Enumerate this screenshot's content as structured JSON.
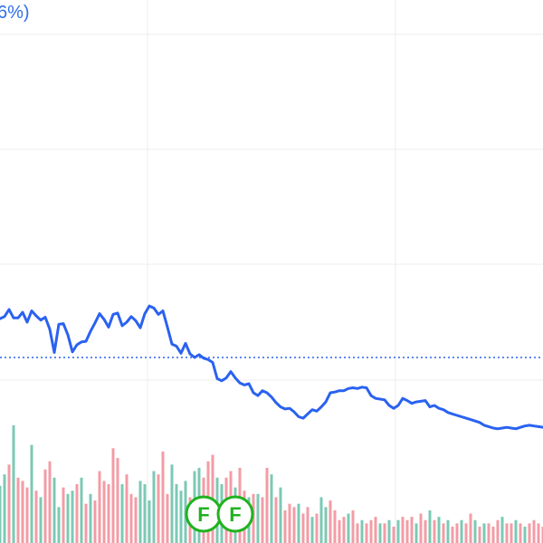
{
  "header": {
    "change_text": "6%)"
  },
  "colors": {
    "price_line": "#2a62f0",
    "baseline": "#2a62f0",
    "volume_up": "#7cc9b4",
    "volume_down": "#f39ca6",
    "marker": "#20b21f",
    "grid": "#ececec"
  },
  "chart_data": {
    "type": "line",
    "price": {
      "x": [
        0,
        1,
        2,
        3,
        4,
        5,
        6,
        7,
        8,
        9,
        10,
        11,
        12,
        13,
        14,
        15,
        16,
        17,
        18,
        19,
        20,
        21,
        22,
        23,
        24,
        25,
        26,
        27,
        28,
        29,
        30,
        31,
        32,
        33,
        34,
        35,
        36,
        37,
        38,
        39,
        40,
        41,
        42,
        43,
        44,
        45,
        46,
        47,
        48,
        49,
        50,
        51,
        52,
        53,
        54,
        55,
        56,
        57,
        58,
        59,
        60,
        61,
        62,
        63,
        64,
        65,
        66,
        67,
        68,
        69,
        70,
        71,
        72,
        73,
        74,
        75,
        76,
        77,
        78,
        79,
        80,
        81,
        82,
        83,
        84,
        85,
        86,
        87,
        88,
        89,
        90,
        91,
        92,
        93,
        94,
        95,
        96,
        97,
        98,
        99,
        100,
        101,
        102,
        103,
        104,
        105,
        106,
        107,
        108,
        109,
        110,
        111,
        112,
        113,
        114,
        115,
        116,
        117,
        118,
        119,
        120
      ],
      "values": [
        55,
        58,
        68,
        56,
        56,
        64,
        50,
        66,
        59,
        53,
        57,
        40,
        7,
        47,
        48,
        32,
        8,
        18,
        22,
        23,
        37,
        49,
        62,
        54,
        43,
        61,
        63,
        45,
        50,
        58,
        52,
        42,
        62,
        73,
        70,
        61,
        66,
        43,
        19,
        16,
        6,
        20,
        5,
        0,
        4,
        -1,
        -3,
        -7,
        -30,
        -33,
        -29,
        -20,
        -29,
        -36,
        -39,
        -37,
        -50,
        -54,
        -47,
        -50,
        -56,
        -64,
        -70,
        -73,
        -72,
        -77,
        -84,
        -86,
        -80,
        -74,
        -76,
        -70,
        -63,
        -50,
        -49,
        -47,
        -47,
        -44,
        -43,
        -44,
        -42,
        -43,
        -54,
        -58,
        -59,
        -60,
        -68,
        -72,
        -68,
        -58,
        -61,
        -65,
        -63,
        -62,
        -61,
        -70,
        -68,
        -72,
        -74,
        -78,
        -80,
        -82,
        -84,
        -86,
        -88,
        -90,
        -92,
        -96,
        -98,
        -100,
        -101,
        -100,
        -99,
        -100,
        -101,
        -99,
        -97,
        -96,
        -97,
        -98,
        -99
      ],
      "baseline": 0,
      "y_range": [
        -150,
        200
      ]
    },
    "volume": {
      "values": [
        35,
        42,
        48,
        72,
        40,
        38,
        34,
        60,
        32,
        28,
        45,
        50,
        40,
        22,
        34,
        30,
        32,
        36,
        40,
        24,
        30,
        26,
        44,
        38,
        36,
        58,
        52,
        36,
        42,
        30,
        28,
        38,
        36,
        26,
        44,
        42,
        56,
        30,
        48,
        36,
        32,
        38,
        28,
        44,
        46,
        40,
        50,
        54,
        40,
        36,
        40,
        44,
        34,
        46,
        32,
        28,
        30,
        30,
        28,
        46,
        42,
        28,
        34,
        20,
        24,
        22,
        24,
        18,
        22,
        16,
        18,
        28,
        22,
        26,
        20,
        14,
        16,
        18,
        20,
        12,
        14,
        12,
        14,
        16,
        12,
        12,
        14,
        10,
        14,
        16,
        14,
        16,
        12,
        18,
        14,
        20,
        14,
        16,
        12,
        14,
        10,
        12,
        14,
        12,
        18,
        14,
        10,
        12,
        12,
        10,
        14,
        16,
        12,
        12,
        14,
        12,
        10,
        12,
        14,
        12,
        10
      ],
      "colors": [
        1,
        1,
        0,
        1,
        0,
        0,
        0,
        1,
        0,
        1,
        0,
        0,
        1,
        1,
        0,
        1,
        1,
        0,
        1,
        0,
        1,
        0,
        0,
        0,
        0,
        0,
        0,
        1,
        0,
        0,
        0,
        1,
        1,
        1,
        1,
        0,
        0,
        0,
        1,
        1,
        1,
        1,
        0,
        1,
        1,
        0,
        0,
        0,
        1,
        1,
        0,
        0,
        1,
        0,
        0,
        1,
        0,
        1,
        0,
        0,
        1,
        0,
        1,
        0,
        0,
        0,
        1,
        0,
        0,
        1,
        0,
        1,
        1,
        0,
        0,
        0,
        0,
        1,
        0,
        0,
        1,
        0,
        0,
        0,
        1,
        0,
        1,
        0,
        1,
        0,
        0,
        0,
        1,
        0,
        0,
        1,
        0,
        1,
        0,
        1,
        0,
        0,
        1,
        0,
        0,
        1,
        0,
        1,
        0,
        0,
        0,
        1,
        0,
        0,
        1,
        0,
        1,
        0,
        0,
        0,
        0
      ]
    },
    "markers": [
      {
        "label": "F",
        "at": 45
      },
      {
        "label": "F",
        "at": 52
      }
    ]
  }
}
